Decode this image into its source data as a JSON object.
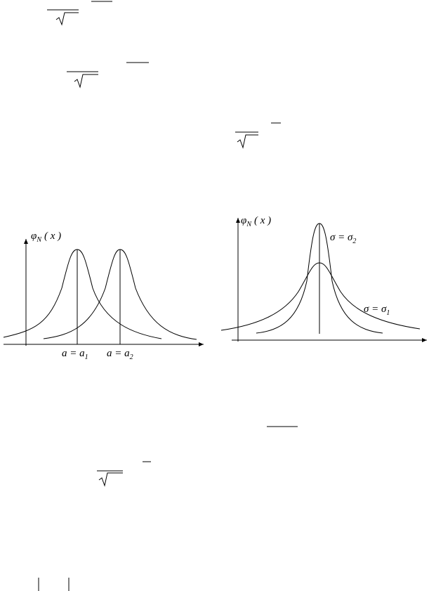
{
  "figures": [
    {
      "y_label": {
        "symbol": "φ",
        "sub": "N",
        "arg": "( x )"
      },
      "curve_labels": [
        {
          "base": "a = a",
          "sub": "1"
        },
        {
          "base": "a = a",
          "sub": "2"
        }
      ]
    },
    {
      "y_label": {
        "symbol": "φ",
        "sub": "N",
        "arg": "( x )"
      },
      "curve_labels": [
        {
          "base": "σ = σ",
          "sub": "2"
        },
        {
          "base": "σ = σ",
          "sub": "1"
        }
      ]
    }
  ]
}
